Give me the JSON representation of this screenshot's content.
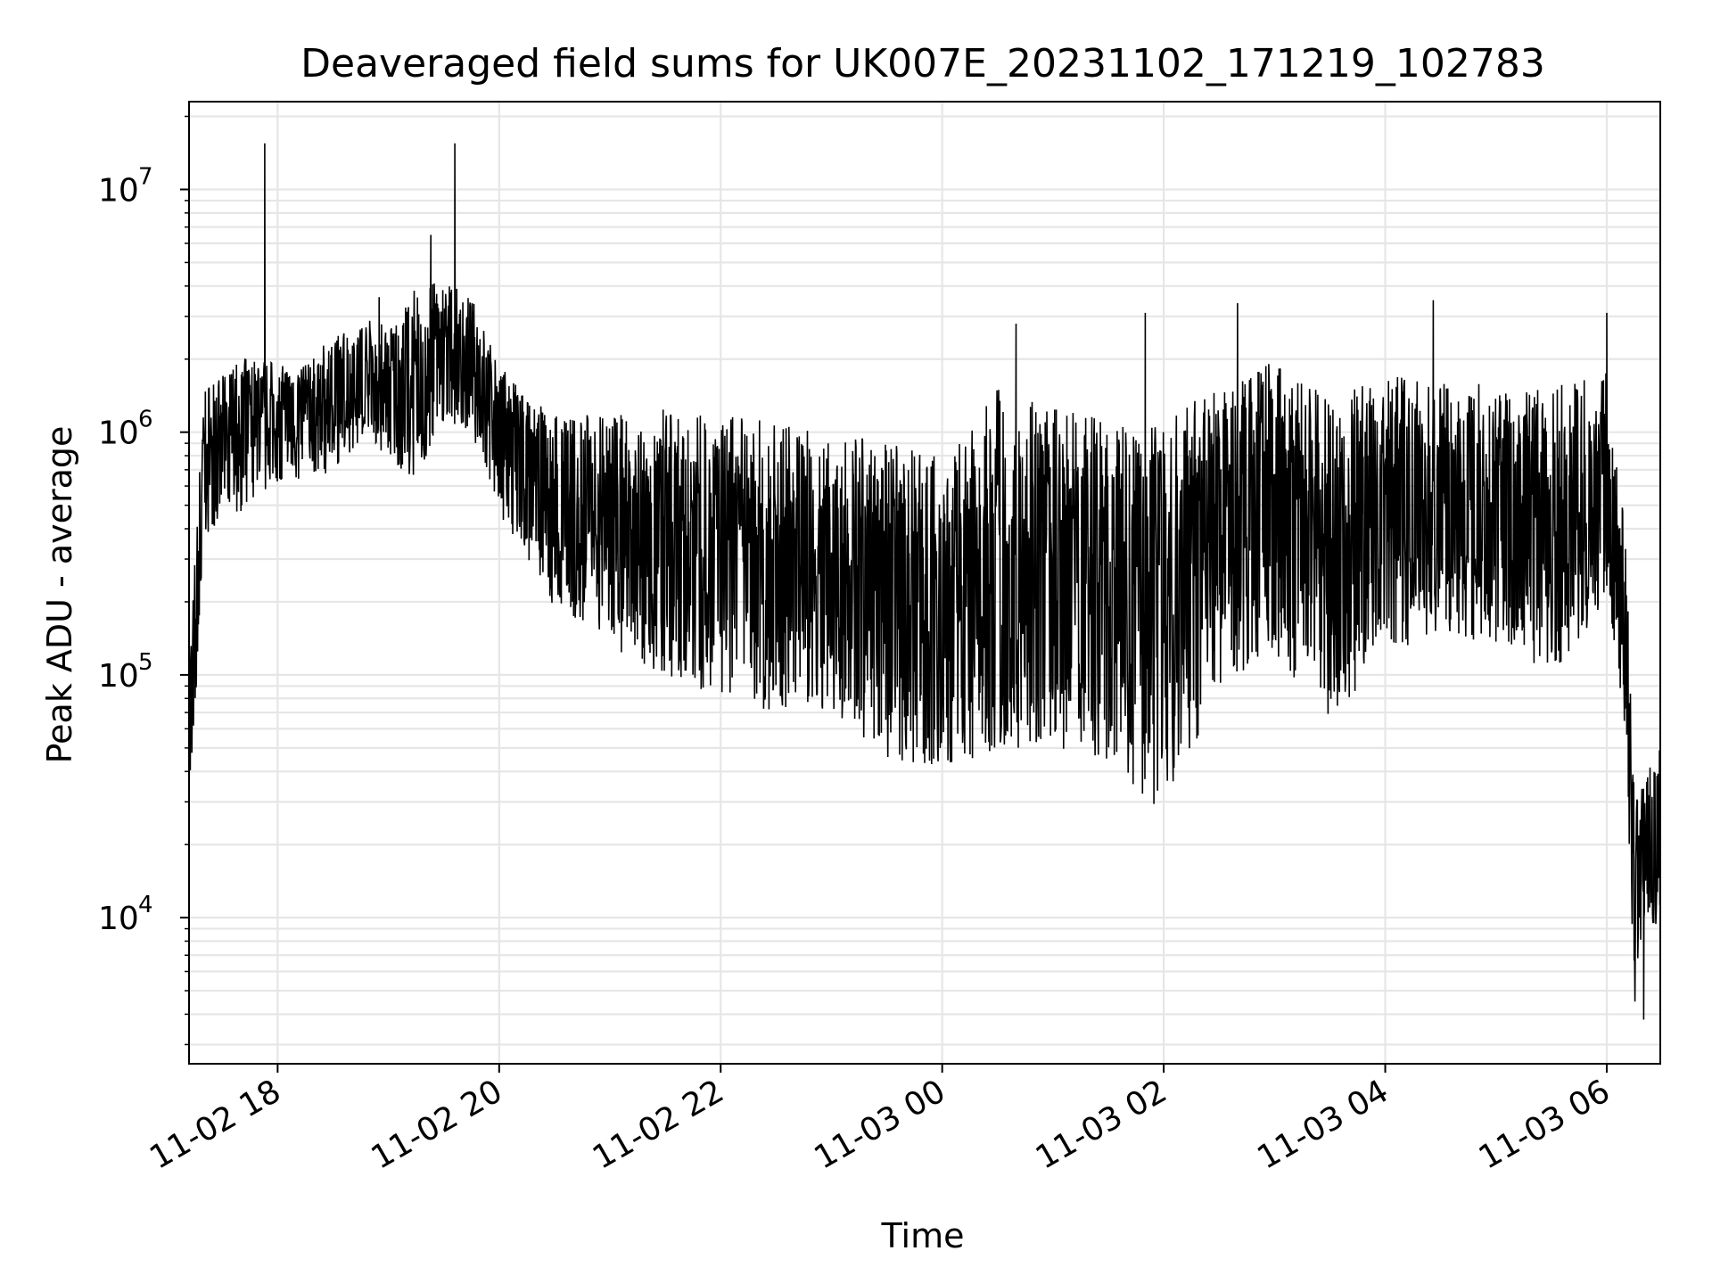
{
  "chart_data": {
    "type": "line",
    "title": "Deaveraged field sums for UK007E_20231102_171219_102783",
    "xlabel": "Time",
    "ylabel": "Peak ADU - average",
    "yscale": "log",
    "grid": true,
    "x_tick_labels": [
      "11-02 18",
      "11-02 20",
      "11-02 22",
      "11-03 00",
      "11-03 02",
      "11-03 04",
      "11-03 06"
    ],
    "x_ticks": [
      "2023-11-02 18:00",
      "2023-11-02 20:00",
      "2023-11-02 22:00",
      "2023-11-03 00:00",
      "2023-11-03 02:00",
      "2023-11-03 04:00",
      "2023-11-03 06:00"
    ],
    "xlim": [
      "2023-11-02 17:12",
      "2023-11-03 06:29"
    ],
    "y_ticks": [
      {
        "base": "10",
        "exp": "4",
        "value": 10000
      },
      {
        "base": "10",
        "exp": "5",
        "value": 100000
      },
      {
        "base": "10",
        "exp": "6",
        "value": 1000000
      },
      {
        "base": "10",
        "exp": "7",
        "value": 10000000
      }
    ],
    "ylim": [
      2500,
      23000000
    ],
    "series": [
      {
        "color": "#000000",
        "envelope_points": [
          {
            "x": "2023-11-02 17:12",
            "y": 60000,
            "lo": 32000,
            "hi": 130000
          },
          {
            "x": "2023-11-02 17:16",
            "y": 120000,
            "lo": 60000,
            "hi": 400000
          },
          {
            "x": "2023-11-02 17:20",
            "y": 700000,
            "lo": 350000,
            "hi": 1600000
          },
          {
            "x": "2023-11-02 17:30",
            "y": 900000,
            "lo": 450000,
            "hi": 1700000
          },
          {
            "x": "2023-11-02 17:40",
            "y": 1000000,
            "lo": 450000,
            "hi": 2000000
          },
          {
            "x": "2023-11-02 17:50",
            "y": 1100000,
            "lo": 550000,
            "hi": 2100000
          },
          {
            "x": "2023-11-02 18:00",
            "y": 1100000,
            "lo": 600000,
            "hi": 1900000
          },
          {
            "x": "2023-11-02 18:15",
            "y": 1150000,
            "lo": 600000,
            "hi": 1900000
          },
          {
            "x": "2023-11-02 18:30",
            "y": 1300000,
            "lo": 700000,
            "hi": 2500000
          },
          {
            "x": "2023-11-02 18:45",
            "y": 1450000,
            "lo": 900000,
            "hi": 3000000
          },
          {
            "x": "2023-11-02 19:00",
            "y": 1550000,
            "lo": 800000,
            "hi": 2800000
          },
          {
            "x": "2023-11-02 19:15",
            "y": 1600000,
            "lo": 600000,
            "hi": 4000000
          },
          {
            "x": "2023-11-02 19:30",
            "y": 2300000,
            "lo": 1100000,
            "hi": 4200000
          },
          {
            "x": "2023-11-02 19:45",
            "y": 2000000,
            "lo": 1000000,
            "hi": 3600000
          },
          {
            "x": "2023-11-02 20:00",
            "y": 1100000,
            "lo": 450000,
            "hi": 1900000
          },
          {
            "x": "2023-11-02 20:15",
            "y": 750000,
            "lo": 300000,
            "hi": 1400000
          },
          {
            "x": "2023-11-02 20:30",
            "y": 500000,
            "lo": 180000,
            "hi": 1200000
          },
          {
            "x": "2023-11-02 21:00",
            "y": 420000,
            "lo": 130000,
            "hi": 1200000
          },
          {
            "x": "2023-11-02 21:30",
            "y": 380000,
            "lo": 100000,
            "hi": 1250000
          },
          {
            "x": "2023-11-02 22:00",
            "y": 360000,
            "lo": 80000,
            "hi": 1200000
          },
          {
            "x": "2023-11-02 22:30",
            "y": 330000,
            "lo": 70000,
            "hi": 1100000
          },
          {
            "x": "2023-11-02 23:00",
            "y": 300000,
            "lo": 70000,
            "hi": 1000000
          },
          {
            "x": "2023-11-02 23:30",
            "y": 250000,
            "lo": 45000,
            "hi": 900000
          },
          {
            "x": "2023-11-03 00:00",
            "y": 230000,
            "lo": 40000,
            "hi": 800000
          },
          {
            "x": "2023-11-03 00:30",
            "y": 300000,
            "lo": 50000,
            "hi": 1500000
          },
          {
            "x": "2023-11-03 01:00",
            "y": 280000,
            "lo": 50000,
            "hi": 1300000
          },
          {
            "x": "2023-11-03 01:30",
            "y": 280000,
            "lo": 45000,
            "hi": 1100000
          },
          {
            "x": "2023-11-03 02:00",
            "y": 260000,
            "lo": 25000,
            "hi": 1100000
          },
          {
            "x": "2023-11-03 02:30",
            "y": 450000,
            "lo": 90000,
            "hi": 1600000
          },
          {
            "x": "2023-11-03 03:00",
            "y": 550000,
            "lo": 120000,
            "hi": 2000000
          },
          {
            "x": "2023-11-03 03:30",
            "y": 300000,
            "lo": 65000,
            "hi": 1400000
          },
          {
            "x": "2023-11-03 04:00",
            "y": 550000,
            "lo": 120000,
            "hi": 1800000
          },
          {
            "x": "2023-11-03 04:30",
            "y": 550000,
            "lo": 150000,
            "hi": 1600000
          },
          {
            "x": "2023-11-03 05:00",
            "y": 520000,
            "lo": 130000,
            "hi": 1600000
          },
          {
            "x": "2023-11-03 05:30",
            "y": 500000,
            "lo": 100000,
            "hi": 1500000
          },
          {
            "x": "2023-11-03 06:00",
            "y": 550000,
            "lo": 200000,
            "hi": 1900000
          },
          {
            "x": "2023-11-03 06:10",
            "y": 180000,
            "lo": 60000,
            "hi": 450000
          },
          {
            "x": "2023-11-03 06:15",
            "y": 15000,
            "lo": 4000,
            "hi": 35000
          },
          {
            "x": "2023-11-03 06:22",
            "y": 20000,
            "lo": 8000,
            "hi": 40000
          },
          {
            "x": "2023-11-03 06:29",
            "y": 15000,
            "lo": 10000,
            "hi": 50000
          }
        ],
        "spikes": [
          {
            "x": "2023-11-02 17:53",
            "y": 15500000
          },
          {
            "x": "2023-11-02 18:55",
            "y": 3600000
          },
          {
            "x": "2023-11-02 19:23",
            "y": 6500000
          },
          {
            "x": "2023-11-02 19:36",
            "y": 15500000
          },
          {
            "x": "2023-11-03 00:40",
            "y": 2800000
          },
          {
            "x": "2023-11-03 01:50",
            "y": 3100000
          },
          {
            "x": "2023-11-03 02:40",
            "y": 3400000
          },
          {
            "x": "2023-11-03 04:26",
            "y": 3500000
          },
          {
            "x": "2023-11-03 06:00",
            "y": 3100000
          },
          {
            "x": "2023-11-03 06:20",
            "y": 3800
          }
        ]
      }
    ]
  }
}
